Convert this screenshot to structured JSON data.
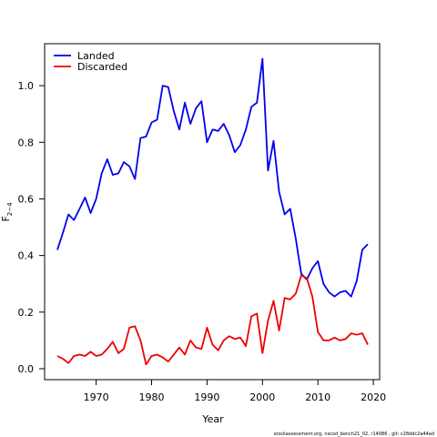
{
  "chart_data": {
    "type": "line",
    "xlabel": "Year",
    "ylabel": "F",
    "ylabel_sub": "2−4",
    "xlim": [
      1963,
      2019
    ],
    "ylim": [
      0,
      1.1
    ],
    "x_ticks": [
      1970,
      1980,
      1990,
      2000,
      2010,
      2020
    ],
    "y_ticks": [
      0.0,
      0.2,
      0.4,
      0.6,
      0.8,
      1.0
    ],
    "x_tick_labels": [
      "1970",
      "1980",
      "1990",
      "2000",
      "2010",
      "2020"
    ],
    "y_tick_labels": [
      "0.0",
      "0.2",
      "0.4",
      "0.6",
      "0.8",
      "1.0"
    ],
    "legend_position": "top-left",
    "x": [
      1963,
      1964,
      1965,
      1966,
      1967,
      1968,
      1969,
      1970,
      1971,
      1972,
      1973,
      1974,
      1975,
      1976,
      1977,
      1978,
      1979,
      1980,
      1981,
      1982,
      1983,
      1984,
      1985,
      1986,
      1987,
      1988,
      1989,
      1990,
      1991,
      1992,
      1993,
      1994,
      1995,
      1996,
      1997,
      1998,
      1999,
      2000,
      2001,
      2002,
      2003,
      2004,
      2005,
      2006,
      2007,
      2008,
      2009,
      2010,
      2011,
      2012,
      2013,
      2014,
      2015,
      2016,
      2017,
      2018,
      2019
    ],
    "series": [
      {
        "name": "Landed",
        "color": "#0000ee",
        "values": [
          0.42,
          0.48,
          0.545,
          0.525,
          0.565,
          0.605,
          0.55,
          0.6,
          0.69,
          0.74,
          0.685,
          0.69,
          0.73,
          0.715,
          0.67,
          0.815,
          0.82,
          0.87,
          0.88,
          1.0,
          0.995,
          0.91,
          0.845,
          0.94,
          0.865,
          0.92,
          0.945,
          0.8,
          0.845,
          0.84,
          0.865,
          0.825,
          0.765,
          0.79,
          0.845,
          0.925,
          0.94,
          1.095,
          0.7,
          0.805,
          0.625,
          0.545,
          0.565,
          0.46,
          0.335,
          0.315,
          0.355,
          0.38,
          0.3,
          0.27,
          0.255,
          0.27,
          0.275,
          0.255,
          0.31,
          0.42,
          0.44
        ]
      },
      {
        "name": "Discarded",
        "color": "#ee0000",
        "values": [
          0.045,
          0.035,
          0.02,
          0.045,
          0.05,
          0.045,
          0.06,
          0.045,
          0.05,
          0.07,
          0.095,
          0.055,
          0.07,
          0.145,
          0.15,
          0.1,
          0.015,
          0.045,
          0.05,
          0.04,
          0.025,
          0.05,
          0.075,
          0.05,
          0.1,
          0.075,
          0.07,
          0.145,
          0.085,
          0.065,
          0.1,
          0.115,
          0.105,
          0.11,
          0.08,
          0.185,
          0.195,
          0.055,
          0.17,
          0.24,
          0.135,
          0.25,
          0.245,
          0.265,
          0.33,
          0.32,
          0.255,
          0.13,
          0.1,
          0.1,
          0.11,
          0.1,
          0.105,
          0.125,
          0.12,
          0.125,
          0.085
        ]
      }
    ]
  },
  "footer": "stockassessment.org, nscod_bench21_02, r14086 , git: c28ddc2a44ad"
}
